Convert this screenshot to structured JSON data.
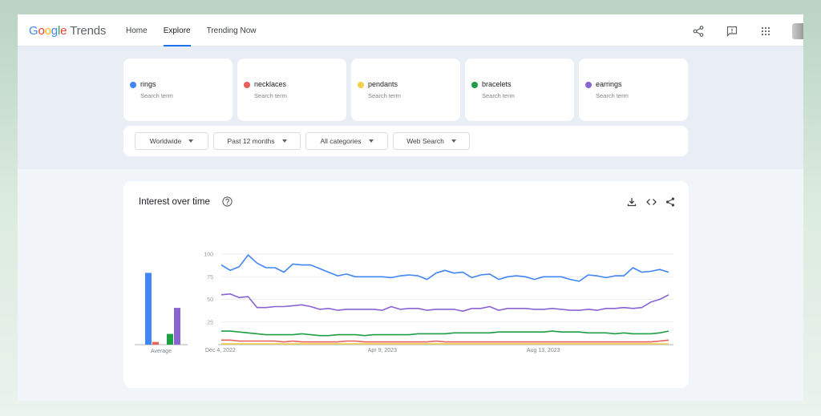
{
  "header": {
    "logo_google": [
      "G",
      "o",
      "o",
      "g",
      "l",
      "e"
    ],
    "logo_trends": "Trends",
    "nav": [
      "Home",
      "Explore",
      "Trending Now"
    ],
    "active_nav": "Explore",
    "icons": [
      "share-icon",
      "feedback-icon",
      "apps-icon"
    ]
  },
  "terms": [
    {
      "name": "rings",
      "sub": "Search term",
      "color": "#4285f4"
    },
    {
      "name": "necklaces",
      "sub": "Search term",
      "color": "#e8605a"
    },
    {
      "name": "pendants",
      "sub": "Search term",
      "color": "#f4cf4b"
    },
    {
      "name": "bracelets",
      "sub": "Search term",
      "color": "#1e9e45"
    },
    {
      "name": "earrings",
      "sub": "Search term",
      "color": "#8a63d2"
    }
  ],
  "filters": [
    "Worldwide",
    "Past 12 months",
    "All categories",
    "Web Search"
  ],
  "card": {
    "title": "Interest over time",
    "icons": [
      "download-icon",
      "embed-icon",
      "share-icon"
    ]
  },
  "chart_data": {
    "type": "line",
    "title": "",
    "yticks": [
      100,
      75,
      50,
      25
    ],
    "ylim": [
      0,
      100
    ],
    "xticks": [
      "Dec 4, 2022",
      "Apr 9, 2023",
      "Aug 13, 2023"
    ],
    "xtick_index": [
      0,
      18,
      36
    ],
    "average_label": "Average",
    "averages": [
      {
        "name": "rings",
        "value": 80
      },
      {
        "name": "necklaces",
        "value": 3
      },
      {
        "name": "pendants",
        "value": 0
      },
      {
        "name": "bracelets",
        "value": 12
      },
      {
        "name": "earrings",
        "value": 41
      }
    ],
    "series": [
      {
        "name": "rings",
        "color": "#4285f4",
        "values": [
          88,
          82,
          86,
          99,
          90,
          85,
          85,
          80,
          89,
          88,
          88,
          84,
          80,
          76,
          78,
          75,
          75,
          75,
          75,
          74,
          76,
          77,
          76,
          72,
          79,
          82,
          79,
          80,
          74,
          77,
          78,
          72,
          75,
          76,
          75,
          72,
          75,
          75,
          75,
          72,
          70,
          77,
          76,
          74,
          76,
          76,
          85,
          80,
          81,
          83,
          80
        ]
      },
      {
        "name": "earrings",
        "color": "#8a63d2",
        "values": [
          55,
          56,
          52,
          53,
          41,
          41,
          42,
          42,
          43,
          44,
          42,
          39,
          40,
          38,
          39,
          39,
          39,
          39,
          38,
          42,
          39,
          40,
          40,
          38,
          39,
          39,
          39,
          37,
          40,
          40,
          42,
          38,
          40,
          40,
          40,
          39,
          39,
          40,
          39,
          38,
          38,
          39,
          38,
          40,
          40,
          41,
          40,
          41,
          47,
          50,
          55
        ]
      },
      {
        "name": "bracelets",
        "color": "#1e9e45",
        "values": [
          15,
          15,
          14,
          13,
          12,
          11,
          11,
          11,
          11,
          12,
          11,
          10,
          10,
          11,
          11,
          11,
          10,
          11,
          11,
          11,
          11,
          11,
          12,
          12,
          12,
          12,
          13,
          13,
          13,
          13,
          13,
          14,
          14,
          14,
          14,
          14,
          14,
          15,
          14,
          14,
          14,
          13,
          13,
          13,
          12,
          13,
          12,
          12,
          12,
          13,
          15
        ]
      },
      {
        "name": "necklaces",
        "color": "#e8605a",
        "values": [
          5,
          5,
          4,
          4,
          4,
          4,
          4,
          3,
          4,
          3,
          3,
          3,
          3,
          3,
          4,
          4,
          3,
          3,
          3,
          3,
          3,
          3,
          3,
          3,
          4,
          3,
          3,
          3,
          3,
          3,
          3,
          3,
          3,
          3,
          3,
          3,
          3,
          3,
          3,
          3,
          3,
          3,
          3,
          3,
          3,
          3,
          3,
          3,
          3,
          4,
          5
        ]
      },
      {
        "name": "pendants",
        "color": "#f4cf4b",
        "values": [
          1,
          1,
          1,
          1,
          1,
          1,
          1,
          1,
          1,
          1,
          1,
          1,
          1,
          1,
          1,
          1,
          1,
          1,
          1,
          1,
          1,
          1,
          1,
          1,
          1,
          1,
          1,
          1,
          1,
          1,
          1,
          1,
          1,
          1,
          1,
          1,
          1,
          1,
          1,
          1,
          1,
          1,
          1,
          1,
          1,
          1,
          1,
          1,
          1,
          1,
          1
        ]
      }
    ]
  }
}
